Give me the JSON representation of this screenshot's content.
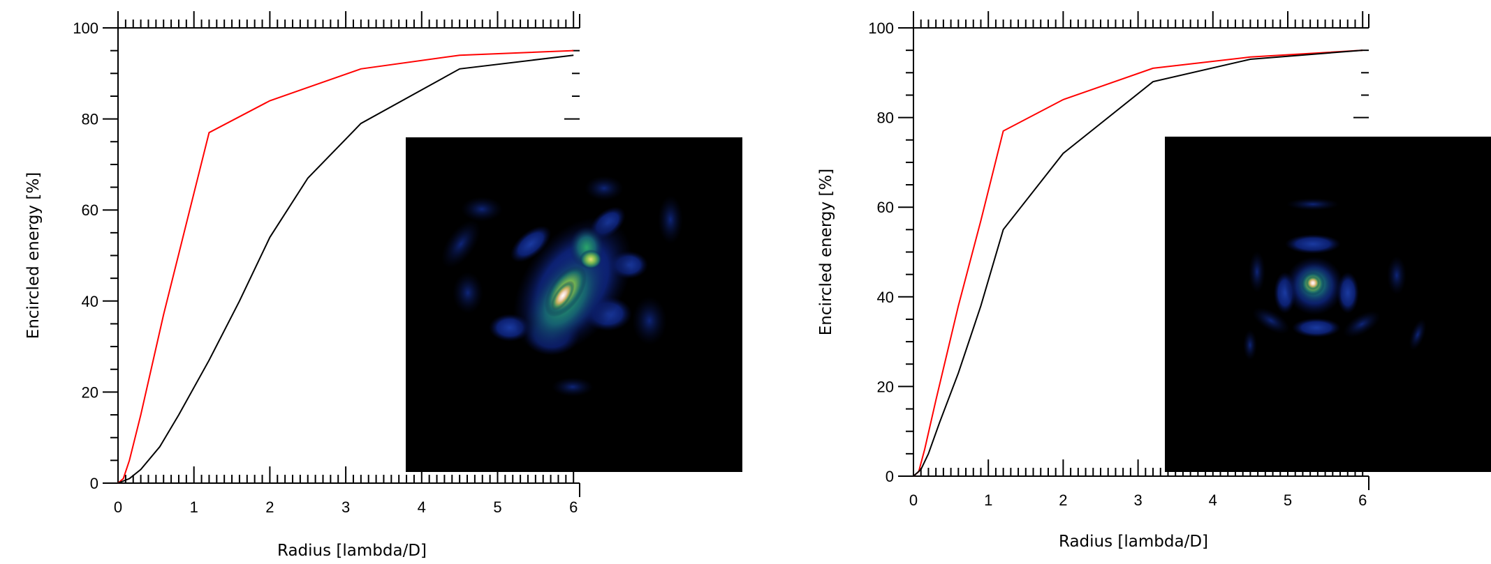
{
  "chart_data": [
    {
      "type": "line",
      "title": "",
      "xlabel": "Radius [lambda/D]",
      "ylabel": "Encircled energy [%]",
      "xlim": [
        0,
        6.2
      ],
      "ylim": [
        0,
        100
      ],
      "x_major_ticks": [
        0,
        1,
        2,
        3,
        4,
        5,
        6
      ],
      "y_major_ticks": [
        0,
        20,
        40,
        60,
        80,
        100
      ],
      "x_tick_labels": [
        "0",
        "1",
        "2",
        "3",
        "4",
        "5",
        "6"
      ],
      "y_tick_labels": [
        "0",
        "20",
        "40",
        "60",
        "80",
        "100"
      ],
      "grid": false,
      "series": [
        {
          "color": "#ff0000",
          "x": [
            0,
            0.07,
            0.15,
            0.3,
            0.6,
            0.9,
            1.2,
            2.0,
            3.2,
            4.5,
            6.0
          ],
          "y": [
            0,
            1,
            5,
            15,
            37,
            57,
            77,
            84,
            91,
            94,
            95
          ]
        },
        {
          "color": "#000000",
          "x": [
            0,
            0.15,
            0.3,
            0.55,
            0.8,
            1.2,
            1.6,
            2.0,
            2.5,
            3.2,
            4.5,
            6.0
          ],
          "y": [
            0,
            1,
            3,
            8,
            15,
            27,
            40,
            54,
            67,
            79,
            91,
            94
          ]
        }
      ],
      "inset": {
        "type": "heatmap",
        "colormap": "black-blue-green-yellow-white",
        "pattern": "elongated-diagonal-core"
      }
    },
    {
      "type": "line",
      "title": "",
      "xlabel": "Radius [lambda/D]",
      "ylabel": "Encircled energy [%]",
      "xlim": [
        0,
        6.2
      ],
      "ylim": [
        0,
        100
      ],
      "x_major_ticks": [
        0,
        1,
        2,
        3,
        4,
        5,
        6
      ],
      "y_major_ticks": [
        0,
        20,
        40,
        60,
        80,
        100
      ],
      "x_tick_labels": [
        "0",
        "1",
        "2",
        "3",
        "4",
        "5",
        "6"
      ],
      "y_tick_labels": [
        "0",
        "20",
        "40",
        "60",
        "80",
        "100"
      ],
      "grid": false,
      "series": [
        {
          "color": "#ff0000",
          "x": [
            0,
            0.07,
            0.15,
            0.3,
            0.6,
            0.9,
            1.2,
            2.0,
            3.2,
            4.5,
            6.0
          ],
          "y": [
            0,
            1,
            6,
            17,
            38,
            57,
            77,
            84,
            91,
            93.5,
            95
          ]
        },
        {
          "color": "#000000",
          "x": [
            0,
            0.1,
            0.2,
            0.35,
            0.6,
            0.9,
            1.2,
            2.0,
            3.2,
            4.5,
            6.0
          ],
          "y": [
            0,
            1.5,
            5,
            12,
            23,
            38,
            55,
            72,
            88,
            93,
            95
          ]
        }
      ],
      "inset": {
        "type": "heatmap",
        "colormap": "black-blue-green-yellow-white",
        "pattern": "compact-core-with-rings"
      }
    }
  ]
}
